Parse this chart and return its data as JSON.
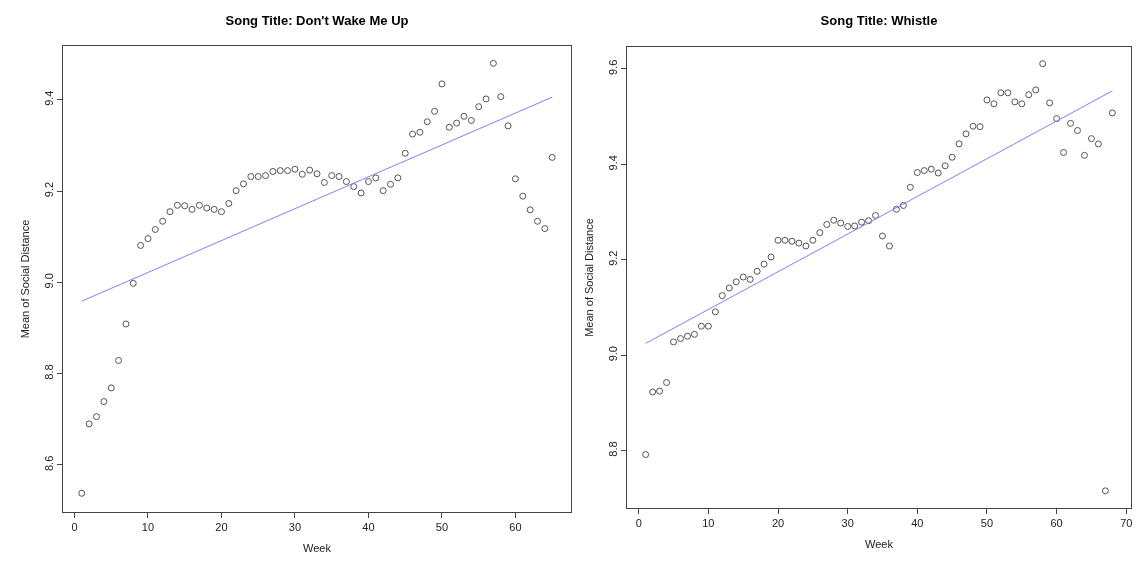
{
  "chart_data": [
    {
      "type": "scatter",
      "title": "Song Title: Don't Wake Me Up",
      "xlabel": "Week",
      "ylabel": "Mean of Social Distance",
      "grid": false,
      "legend": false,
      "xlim": [
        -1.56,
        67.56
      ],
      "xticks": [
        0,
        10,
        20,
        30,
        40,
        50,
        60
      ],
      "ylim": [
        8.497,
        9.518
      ],
      "yticks": [
        8.6,
        8.8,
        {
          "value": 9.0,
          "label": "9.0"
        },
        9.2,
        9.4
      ],
      "x": [
        1,
        2,
        3,
        4,
        5,
        6,
        7,
        8,
        9,
        10,
        11,
        12,
        13,
        14,
        15,
        16,
        17,
        18,
        19,
        20,
        21,
        22,
        23,
        24,
        25,
        26,
        27,
        28,
        29,
        30,
        31,
        32,
        33,
        34,
        35,
        36,
        37,
        38,
        39,
        40,
        41,
        42,
        43,
        44,
        45,
        46,
        47,
        48,
        49,
        50,
        51,
        52,
        53,
        54,
        55,
        56,
        57,
        58,
        59,
        60,
        61,
        62,
        63,
        64,
        65
      ],
      "series": [
        {
          "color": "#555555",
          "marker": "circle",
          "values": [
            8.538,
            8.69,
            8.706,
            8.739,
            8.769,
            8.829,
            8.909,
            8.998,
            9.081,
            9.096,
            9.116,
            9.134,
            9.155,
            9.169,
            9.168,
            9.16,
            9.169,
            9.163,
            9.16,
            9.155,
            9.173,
            9.201,
            9.216,
            9.232,
            9.232,
            9.234,
            9.243,
            9.245,
            9.245,
            9.248,
            9.237,
            9.246,
            9.238,
            9.219,
            9.234,
            9.232,
            9.221,
            9.21,
            9.196,
            9.221,
            9.229,
            9.201,
            9.215,
            9.229,
            9.283,
            9.325,
            9.329,
            9.352,
            9.375,
            9.435,
            9.34,
            9.349,
            9.364,
            9.355,
            9.385,
            9.402,
            9.48,
            9.407,
            9.343,
            9.227,
            9.189,
            9.159,
            9.134,
            9.118,
            9.274
          ]
        },
        {
          "type": "line",
          "marker": "none",
          "color": "#7f7fff",
          "x": [
            1,
            65
          ],
          "values": [
            8.959,
            9.406
          ]
        }
      ]
    },
    {
      "type": "scatter",
      "title": "Song Title: Whistle",
      "xlabel": "Week",
      "ylabel": "Mean of Social Distance",
      "grid": false,
      "legend": false,
      "xlim": [
        -1.68,
        70.68
      ],
      "xticks": [
        0,
        10,
        20,
        30,
        40,
        50,
        60,
        70
      ],
      "ylim": [
        8.68,
        9.646
      ],
      "yticks": [
        8.8,
        {
          "value": 9.0,
          "label": "9.0"
        },
        9.2,
        9.4,
        9.6
      ],
      "x": [
        1,
        2,
        3,
        4,
        5,
        6,
        7,
        8,
        9,
        10,
        11,
        12,
        13,
        14,
        15,
        16,
        17,
        18,
        19,
        20,
        21,
        22,
        23,
        24,
        25,
        26,
        27,
        28,
        29,
        30,
        31,
        32,
        33,
        34,
        35,
        36,
        37,
        38,
        39,
        40,
        41,
        42,
        43,
        44,
        45,
        46,
        47,
        48,
        49,
        50,
        51,
        52,
        53,
        54,
        55,
        56,
        57,
        58,
        59,
        60,
        61,
        62,
        63,
        64,
        65,
        66,
        67,
        68
      ],
      "series": [
        {
          "color": "#555555",
          "marker": "circle",
          "values": [
            8.792,
            8.923,
            8.925,
            8.943,
            9.028,
            9.035,
            9.04,
            9.044,
            9.061,
            9.061,
            9.091,
            9.125,
            9.141,
            9.154,
            9.164,
            9.159,
            9.176,
            9.191,
            9.206,
            9.241,
            9.241,
            9.239,
            9.235,
            9.229,
            9.241,
            9.257,
            9.274,
            9.283,
            9.277,
            9.27,
            9.271,
            9.279,
            9.282,
            9.293,
            9.25,
            9.229,
            9.306,
            9.314,
            9.352,
            9.383,
            9.387,
            9.39,
            9.382,
            9.397,
            9.415,
            9.443,
            9.464,
            9.48,
            9.479,
            9.535,
            9.527,
            9.55,
            9.55,
            9.531,
            9.527,
            9.546,
            9.556,
            9.611,
            9.529,
            9.496,
            9.425,
            9.486,
            9.471,
            9.419,
            9.454,
            9.443,
            8.716,
            9.508
          ]
        },
        {
          "type": "line",
          "marker": "none",
          "color": "#7f7fff",
          "x": [
            1,
            68
          ],
          "values": [
            9.025,
            9.554
          ]
        }
      ]
    }
  ]
}
